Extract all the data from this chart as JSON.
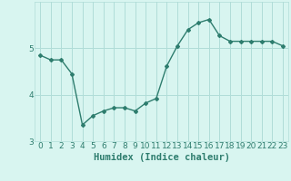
{
  "x": [
    0,
    1,
    2,
    3,
    4,
    5,
    6,
    7,
    8,
    9,
    10,
    11,
    12,
    13,
    14,
    15,
    16,
    17,
    18,
    19,
    20,
    21,
    22,
    23
  ],
  "y": [
    4.85,
    4.75,
    4.75,
    4.45,
    3.35,
    3.55,
    3.65,
    3.72,
    3.72,
    3.65,
    3.82,
    3.92,
    4.62,
    5.05,
    5.4,
    5.55,
    5.62,
    5.27,
    5.15,
    5.15,
    5.15,
    5.15,
    5.15,
    5.05
  ],
  "line_color": "#2e7d6e",
  "marker": "D",
  "marker_size": 2.0,
  "bg_color": "#d8f5f0",
  "grid_color": "#b0ddd8",
  "xlabel": "Humidex (Indice chaleur)",
  "ylim": [
    3.0,
    6.0
  ],
  "xlim": [
    -0.5,
    23.5
  ],
  "yticks": [
    3,
    4,
    5
  ],
  "xticks": [
    0,
    1,
    2,
    3,
    4,
    5,
    6,
    7,
    8,
    9,
    10,
    11,
    12,
    13,
    14,
    15,
    16,
    17,
    18,
    19,
    20,
    21,
    22,
    23
  ],
  "tick_color": "#2e7d6e",
  "xlabel_fontsize": 7.5,
  "tick_fontsize": 6.5,
  "line_width": 1.0
}
